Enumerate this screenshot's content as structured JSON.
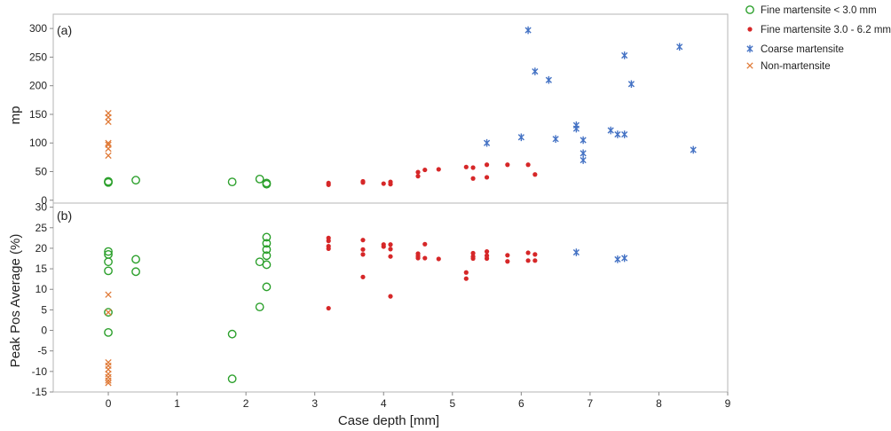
{
  "chart_data": [
    {
      "type": "scatter",
      "panel_label": "(a)",
      "xlabel": "",
      "ylabel": "mp",
      "xlim": [
        -0.8,
        9
      ],
      "ylim": [
        -5,
        325
      ],
      "yticks": [
        0,
        50,
        100,
        150,
        200,
        250,
        300
      ],
      "series": [
        {
          "name": "Fine martensite < 3.0 mm",
          "marker": "circle",
          "color": "#2ca02c",
          "points": [
            [
              0,
              32
            ],
            [
              0,
              31
            ],
            [
              0,
              33
            ],
            [
              0.4,
              35
            ],
            [
              1.8,
              32
            ],
            [
              2.2,
              37
            ],
            [
              2.3,
              30
            ],
            [
              2.3,
              28
            ]
          ]
        },
        {
          "name": "Fine martensite 3.0 - 6.2 mm",
          "marker": "dot",
          "color": "#d62728",
          "points": [
            [
              3.2,
              27
            ],
            [
              3.2,
              30
            ],
            [
              3.7,
              31
            ],
            [
              3.7,
              33
            ],
            [
              4.0,
              29
            ],
            [
              4.1,
              28
            ],
            [
              4.1,
              32
            ],
            [
              4.5,
              42
            ],
            [
              4.5,
              49
            ],
            [
              4.6,
              53
            ],
            [
              4.8,
              54
            ],
            [
              5.2,
              58
            ],
            [
              5.3,
              38
            ],
            [
              5.3,
              57
            ],
            [
              5.5,
              40
            ],
            [
              5.5,
              62
            ],
            [
              5.8,
              62
            ],
            [
              6.1,
              62
            ],
            [
              6.2,
              45
            ]
          ]
        },
        {
          "name": "Coarse martensite",
          "marker": "star",
          "color": "#4472c4",
          "points": [
            [
              5.5,
              100
            ],
            [
              6.0,
              110
            ],
            [
              6.1,
              297
            ],
            [
              6.2,
              225
            ],
            [
              6.4,
              210
            ],
            [
              6.5,
              107
            ],
            [
              6.8,
              131
            ],
            [
              6.8,
              125
            ],
            [
              6.9,
              105
            ],
            [
              6.9,
              82
            ],
            [
              6.9,
              70
            ],
            [
              7.3,
              122
            ],
            [
              7.4,
              115
            ],
            [
              7.5,
              253
            ],
            [
              7.5,
              115
            ],
            [
              7.6,
              203
            ],
            [
              8.3,
              268
            ],
            [
              8.5,
              88
            ]
          ]
        },
        {
          "name": "Non-martensite",
          "marker": "x",
          "color": "#e07b39",
          "points": [
            [
              0,
              152
            ],
            [
              0,
              145
            ],
            [
              0,
              137
            ],
            [
              0,
              100
            ],
            [
              0,
              97
            ],
            [
              0,
              90
            ],
            [
              0,
              78
            ]
          ]
        }
      ]
    },
    {
      "type": "scatter",
      "panel_label": "(b)",
      "xlabel": "Case depth [mm]",
      "ylabel": "Peak Pos Average (%)",
      "xlim": [
        -0.8,
        9
      ],
      "ylim": [
        -15,
        31
      ],
      "xticks": [
        0,
        1,
        2,
        3,
        4,
        5,
        6,
        7,
        8,
        9
      ],
      "yticks": [
        -15,
        -10,
        -5,
        0,
        5,
        10,
        15,
        20,
        25,
        30
      ],
      "series": [
        {
          "name": "Fine martensite < 3.0 mm",
          "marker": "circle",
          "color": "#2ca02c",
          "points": [
            [
              0,
              19.2
            ],
            [
              0,
              18.5
            ],
            [
              0,
              16.7
            ],
            [
              0,
              14.5
            ],
            [
              0,
              4.4
            ],
            [
              0,
              -0.5
            ],
            [
              0.4,
              17.3
            ],
            [
              0.4,
              14.3
            ],
            [
              1.8,
              -0.9
            ],
            [
              1.8,
              -11.8
            ],
            [
              2.2,
              16.7
            ],
            [
              2.2,
              5.7
            ],
            [
              2.3,
              22.7
            ],
            [
              2.3,
              21.2
            ],
            [
              2.3,
              19.7
            ],
            [
              2.3,
              18.2
            ],
            [
              2.3,
              16.0
            ],
            [
              2.3,
              10.6
            ]
          ]
        },
        {
          "name": "Fine martensite 3.0 - 6.2 mm",
          "marker": "dot",
          "color": "#d62728",
          "points": [
            [
              3.2,
              22.5
            ],
            [
              3.2,
              21.8
            ],
            [
              3.2,
              20.5
            ],
            [
              3.2,
              19.9
            ],
            [
              3.2,
              5.4
            ],
            [
              3.7,
              22.0
            ],
            [
              3.7,
              19.7
            ],
            [
              3.7,
              18.5
            ],
            [
              3.7,
              13.0
            ],
            [
              4.0,
              20.4
            ],
            [
              4.0,
              20.9
            ],
            [
              4.1,
              20.9
            ],
            [
              4.1,
              19.8
            ],
            [
              4.1,
              18.0
            ],
            [
              4.1,
              8.3
            ],
            [
              4.5,
              18.7
            ],
            [
              4.5,
              17.6
            ],
            [
              4.5,
              18.1
            ],
            [
              4.6,
              21.0
            ],
            [
              4.6,
              17.6
            ],
            [
              4.8,
              17.4
            ],
            [
              5.2,
              14.1
            ],
            [
              5.2,
              12.6
            ],
            [
              5.3,
              18.8
            ],
            [
              5.3,
              18.0
            ],
            [
              5.3,
              17.5
            ],
            [
              5.5,
              19.2
            ],
            [
              5.5,
              18.2
            ],
            [
              5.5,
              17.5
            ],
            [
              5.8,
              18.3
            ],
            [
              5.8,
              16.8
            ],
            [
              6.1,
              18.9
            ],
            [
              6.1,
              17.0
            ],
            [
              6.2,
              18.5
            ],
            [
              6.2,
              17.0
            ]
          ]
        },
        {
          "name": "Coarse martensite",
          "marker": "star",
          "color": "#4472c4",
          "points": [
            [
              6.8,
              19.0
            ],
            [
              7.4,
              17.3
            ],
            [
              7.5,
              17.6
            ]
          ]
        },
        {
          "name": "Non-martensite",
          "marker": "x",
          "color": "#e07b39",
          "points": [
            [
              0,
              8.7
            ],
            [
              0,
              4.4
            ],
            [
              0,
              -7.8
            ],
            [
              0,
              -8.6
            ],
            [
              0,
              -9.5
            ],
            [
              0,
              -10.6
            ],
            [
              0,
              -11.4
            ],
            [
              0,
              -12.2
            ],
            [
              0,
              -12.8
            ]
          ]
        }
      ]
    }
  ],
  "legend": {
    "placement": "top-right",
    "items": [
      {
        "label": "Fine martensite < 3.0 mm",
        "marker": "circle",
        "color": "#2ca02c"
      },
      {
        "label": "Fine martensite 3.0 - 6.2 mm",
        "marker": "dot",
        "color": "#d62728"
      },
      {
        "label": "Coarse martensite",
        "marker": "star",
        "color": "#4472c4"
      },
      {
        "label": "Non-martensite",
        "marker": "x",
        "color": "#e07b39"
      }
    ]
  }
}
